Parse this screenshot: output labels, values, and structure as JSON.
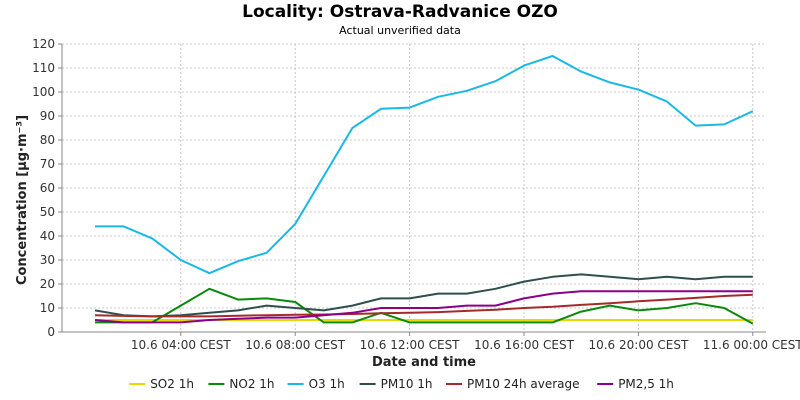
{
  "chart_data": {
    "type": "line",
    "title": "Locality: Ostrava-Radvanice OZO",
    "subtitle": "Actual unverified data",
    "xlabel": "Date and time",
    "ylabel": "Concentration [µg·m⁻³]",
    "ylim": [
      0,
      120
    ],
    "y_ticks": [
      0,
      10,
      20,
      30,
      40,
      50,
      60,
      70,
      80,
      90,
      100,
      110,
      120
    ],
    "x_ticks": [
      "10.6 04:00 CEST",
      "10.6 08:00 CEST",
      "10.6 12:00 CEST",
      "10.6 16:00 CEST",
      "10.6 20:00 CEST",
      "11.6 00:00 CEST"
    ],
    "x": [
      "10.6 01:00",
      "10.6 02:00",
      "10.6 03:00",
      "10.6 04:00",
      "10.6 05:00",
      "10.6 06:00",
      "10.6 07:00",
      "10.6 08:00",
      "10.6 09:00",
      "10.6 10:00",
      "10.6 11:00",
      "10.6 12:00",
      "10.6 13:00",
      "10.6 14:00",
      "10.6 15:00",
      "10.6 16:00",
      "10.6 17:00",
      "10.6 18:00",
      "10.6 19:00",
      "10.6 20:00",
      "10.6 21:00",
      "10.6 22:00",
      "10.6 23:00",
      "11.6 00:00"
    ],
    "grid": true,
    "legend_position": "bottom",
    "series": [
      {
        "name": "SO2 1h",
        "color": "#e6d800",
        "values": [
          5,
          5,
          5,
          5,
          5,
          5,
          5,
          5,
          5,
          5,
          5,
          5,
          5,
          5,
          5,
          5,
          5,
          5,
          5,
          5,
          5,
          5,
          5,
          5
        ]
      },
      {
        "name": "NO2 1h",
        "color": "#0a8a0a",
        "values": [
          4,
          4,
          4,
          11,
          18,
          13.5,
          14,
          12.5,
          4,
          4,
          8,
          4,
          4,
          4,
          4,
          4,
          4,
          8.5,
          11,
          9,
          10,
          12,
          10,
          3.5
        ]
      },
      {
        "name": "O3 1h",
        "color": "#1ab8e8",
        "values": [
          44,
          44,
          39,
          30,
          24.5,
          29.5,
          33,
          45,
          65,
          85,
          93,
          93.5,
          98,
          100.5,
          104.5,
          111,
          115,
          108.5,
          104,
          101,
          96,
          86,
          86.5,
          92
        ]
      },
      {
        "name": "PM10 1h",
        "color": "#2f4f4f",
        "values": [
          9,
          7,
          6.5,
          7,
          8,
          9,
          11,
          10,
          9,
          11,
          14,
          14,
          16,
          16,
          18,
          21,
          23,
          24,
          23,
          22,
          23,
          22,
          23,
          23
        ]
      },
      {
        "name": "PM10 24h average",
        "color": "#a52a2a",
        "values": [
          7,
          6.7,
          6.5,
          6.5,
          6.5,
          6.8,
          7,
          7.2,
          7.3,
          7.5,
          7.8,
          8,
          8.3,
          8.8,
          9.3,
          10,
          10.5,
          11.3,
          12,
          12.8,
          13.5,
          14.2,
          15,
          15.5
        ]
      },
      {
        "name": "PM2,5 1h",
        "color": "#8b008b",
        "values": [
          5,
          4,
          4,
          4,
          5,
          5.5,
          6,
          6,
          7,
          8,
          10,
          10,
          10,
          11,
          11,
          14,
          16,
          17,
          17,
          17,
          17,
          17,
          17,
          17
        ]
      }
    ]
  }
}
